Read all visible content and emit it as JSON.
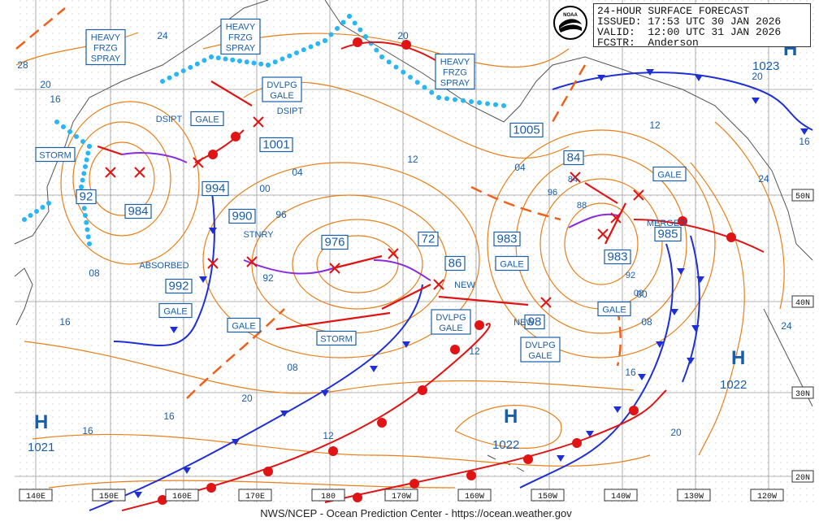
{
  "header": {
    "title": "24-HOUR SURFACE FORECAST",
    "issued": "ISSUED: 17:53 UTC 30 JAN 2026",
    "valid": "VALID:  12:00 UTC 31 JAN 2026",
    "forecaster": "FCSTR:  Anderson",
    "logo_text": "NOAA"
  },
  "footer": "NWS/NCEP - Ocean Prediction Center - https://ocean.weather.gov",
  "longitude_labels": [
    "140E",
    "150E",
    "160E",
    "170E",
    "180",
    "170W",
    "160W",
    "150W",
    "140W",
    "130W",
    "120W"
  ],
  "latitude_labels": [
    "50N",
    "40N",
    "30N",
    "20N"
  ],
  "pressure_centers": [
    {
      "type": "H",
      "value": "1021"
    },
    {
      "type": "H",
      "value": "1022"
    },
    {
      "type": "H",
      "value": "1022"
    },
    {
      "type": "H",
      "value": "1023"
    }
  ],
  "boxed_labels": [
    "HEAVY FRZG SPRAY",
    "HEAVY FRZG SPRAY",
    "HEAVY FRZG SPRAY",
    "DVLPG GALE",
    "GALE",
    "STORM",
    "1001",
    "994",
    "990",
    "976",
    "72",
    "86",
    "1005",
    "983",
    "84",
    "GALE",
    "GALE",
    "983",
    "985",
    "GALE",
    "GALE",
    "STORM",
    "DVLPG GALE",
    "98",
    "DVLPG GALE",
    "992",
    "984",
    "92",
    "GALE"
  ],
  "plain_labels": [
    "DSIPT",
    "DSIPT",
    "STNRY",
    "ABSORBED",
    "NEW",
    "NEW",
    "MERGED",
    "84",
    "96",
    "88",
    "92",
    "00"
  ],
  "isobar_labels": [
    "24",
    "28",
    "20",
    "16",
    "08",
    "04",
    "00",
    "96",
    "92",
    "12",
    "20",
    "16",
    "12",
    "08",
    "16",
    "12",
    "20",
    "16",
    "24",
    "20",
    "16",
    "12",
    "04",
    "08",
    "00",
    "24",
    "16",
    "20"
  ],
  "colors": {
    "isobar": "#e8801a",
    "label_text": "#1a5ea8",
    "cold_front": "#1f2fd6",
    "warm_front": "#e01414",
    "occluded_front": "#8a2be2",
    "ice_edge": "#29b6f6",
    "trough": "#f0601a",
    "grid": "#9a9a9a"
  }
}
